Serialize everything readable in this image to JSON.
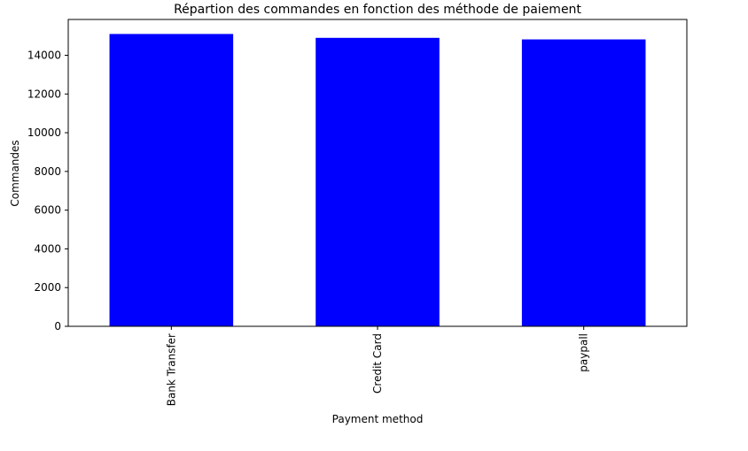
{
  "chart_data": {
    "type": "bar",
    "title": "Répartion des commandes en fonction des méthode de paiement",
    "xlabel": "Payment method",
    "ylabel": "Commandes",
    "categories": [
      "Bank Transfer",
      "Credit Card",
      "paypall"
    ],
    "values": [
      15100,
      14900,
      14820
    ],
    "ylim": [
      0,
      15850
    ],
    "yticks": [
      0,
      2000,
      4000,
      6000,
      8000,
      10000,
      12000,
      14000
    ],
    "bar_color": "#0000ff",
    "grid": false,
    "legend": "none"
  }
}
